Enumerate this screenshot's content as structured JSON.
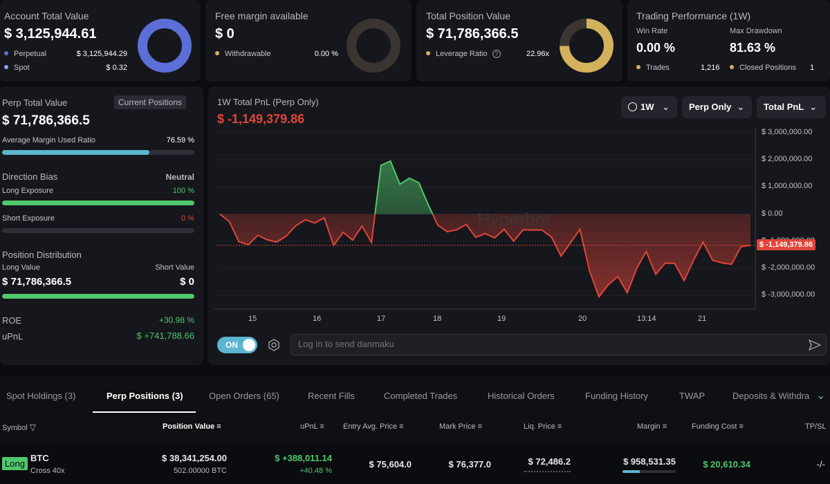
{
  "account": {
    "title": "Account Total Value",
    "value": "$ 3,125,944.61",
    "rows": [
      {
        "label": "Perpetual",
        "value": "$ 3,125,944.29",
        "color": "#5b6fd6"
      },
      {
        "label": "Spot",
        "value": "$ 0.32",
        "color": "#8fa4e8"
      }
    ]
  },
  "margin": {
    "title": "Free margin available",
    "value": "$ 0",
    "row": {
      "label": "Withdrawable",
      "value": "0.00 %",
      "color": "#d4b15c"
    }
  },
  "position": {
    "title": "Total Position Value",
    "value": "$ 71,786,366.5",
    "row": {
      "label": "Leverage Ratio",
      "value": "22.96x",
      "color": "#d4b15c"
    }
  },
  "performance": {
    "title": "Trading Performance (1W)",
    "win_label": "Win Rate",
    "win_value": "0.00 %",
    "dd_label": "Max Drawdown",
    "dd_value": "81.63 %",
    "trades_label": "Trades",
    "trades_value": "1,216",
    "closed_label": "Closed Positions",
    "closed_value": "1"
  },
  "perp": {
    "title": "Perp Total Value",
    "button": "Current Positions",
    "value": "$ 71,786,366.5",
    "margin_label": "Average Margin Used Ratio",
    "margin_value": "76.59 %",
    "margin_ratio": 0.7659,
    "bias_label": "Direction Bias",
    "bias_value": "Neutral",
    "long_label": "Long Exposure",
    "long_value": "100 %",
    "long_ratio": 1,
    "short_label": "Short Exposure",
    "short_value": "0 %",
    "short_ratio": 0,
    "dist_label": "Position Distribution",
    "long_value_label": "Long Value",
    "short_value_label": "Short Value",
    "long_amount": "$ 71,786,366.5",
    "short_amount": "$ 0",
    "dist_ratio": 1,
    "roe_label": "ROE",
    "roe_value": "+30.98 %",
    "upnl_label": "uPnL",
    "upnl_value": "$ +741,788.66"
  },
  "chart_header": {
    "title": "1W Total PnL (Perp Only)",
    "value": "$ -1,149,379.86",
    "period": "1W",
    "scope": "Perp Only",
    "metric": "Total PnL",
    "watermark": "Hyperbot",
    "current_tag": "$ -1,149,379.86"
  },
  "chart_data": {
    "type": "area",
    "ylim": [
      -3500000,
      3300000
    ],
    "yticks": [
      3000000,
      2000000,
      1000000,
      0,
      -1000000,
      -2000000,
      -3000000
    ],
    "ytick_labels": [
      "$ 3,000,000.00",
      "$ 2,000,000.00",
      "$ 1,000,000.00",
      "$ 0.00",
      "$ -1,000,000.00",
      "$ -2,000,000.00",
      "$ -3,000,000.00"
    ],
    "xtick_labels": [
      "15",
      "16",
      "17",
      "18",
      "19",
      "20",
      "13:14",
      "21"
    ],
    "current_value": -1149379.86,
    "values": [
      0,
      -280000,
      -1020000,
      -1130000,
      -780000,
      -950000,
      -1030000,
      -810000,
      -430000,
      -210000,
      -330000,
      -140000,
      -1150000,
      -670000,
      -960000,
      -440000,
      -1050000,
      1800000,
      1950000,
      1100000,
      1320000,
      1150000,
      330000,
      -410000,
      -650000,
      -580000,
      -380000,
      -860000,
      -720000,
      -880000,
      -560000,
      -1000000,
      -580000,
      -590000,
      -590000,
      -850000,
      -1550000,
      -1060000,
      -560000,
      -2080000,
      -3050000,
      -2600000,
      -2300000,
      -2900000,
      -2000000,
      -1380000,
      -2220000,
      -1810000,
      -1820000,
      -2450000,
      -1700000,
      -1030000,
      -1700000,
      -1800000,
      -1850000,
      -1200000,
      -1150000
    ]
  },
  "danmaku": {
    "toggle": "ON",
    "placeholder": "Log in to send danmaku"
  },
  "tabs": [
    "Spot Holdings (3)",
    "Perp Positions (3)",
    "Open Orders (65)",
    "Recent Fills",
    "Completed Trades",
    "Historical Orders",
    "Funding History",
    "TWAP",
    "Deposits & Withdra"
  ],
  "table": {
    "headers": [
      "Symbol",
      "Position Value",
      "uPnL",
      "Entry Avg. Price",
      "Mark Price",
      "Liq. Price",
      "Margin",
      "Funding Cost",
      "TP/SL"
    ],
    "row": {
      "side": "Long",
      "symbol": "BTC",
      "mode": "Cross 40x",
      "position_value": "$ 38,341,254.00",
      "position_size": "502.00000 BTC",
      "upnl": "$ +388,011.14",
      "upnl_pct": "+40.48 %",
      "entry": "$ 75,604.0",
      "mark": "$ 76,377.0",
      "liq": "$ 72,486.2",
      "margin": "$ 958,531.35",
      "funding": "$ 20,610.34",
      "tpsl": "-/-"
    }
  }
}
